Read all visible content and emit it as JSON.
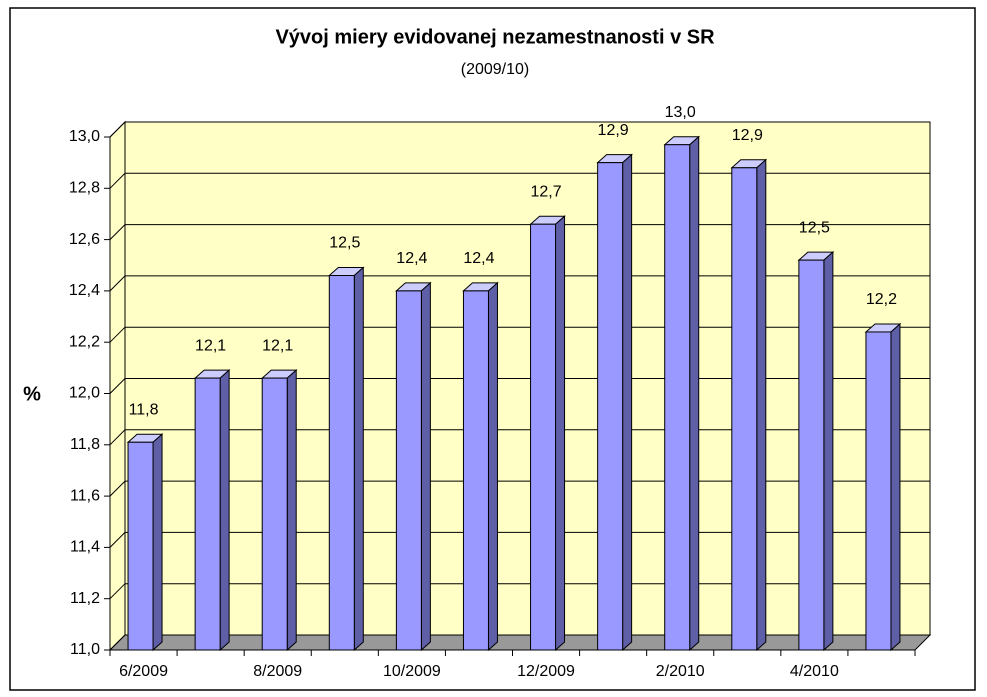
{
  "chart_data": {
    "type": "bar",
    "title": "Vývoj miery evidovanej nezamestnanosti v SR",
    "subtitle": "(2009/10)",
    "y_label": "%",
    "categories": [
      "6/2009",
      null,
      "8/2009",
      null,
      "10/2009",
      null,
      "12/2009",
      null,
      "2/2010",
      null,
      "4/2010",
      null
    ],
    "values": [
      11.81,
      12.06,
      12.06,
      12.46,
      12.4,
      12.4,
      12.66,
      12.9,
      12.97,
      12.88,
      12.52,
      12.24
    ],
    "value_labels": [
      "11,8",
      "12,1",
      "12,1",
      "12,5",
      "12,4",
      "12,4",
      "12,7",
      "12,9",
      "13,0",
      "12,9",
      "12,5",
      "12,2"
    ],
    "color": "#9999ff",
    "ylim": [
      11,
      13
    ],
    "yticks": [
      {
        "value": 11,
        "label": "11,0"
      },
      {
        "value": 11.2,
        "label": "11,2"
      },
      {
        "value": 11.4,
        "label": "11,4"
      },
      {
        "value": 11.6,
        "label": "11,6"
      },
      {
        "value": 11.8,
        "label": "11,8"
      },
      {
        "value": 12,
        "label": "12,0"
      },
      {
        "value": 12.2,
        "label": "12,2"
      },
      {
        "value": 12.4,
        "label": "12,4"
      },
      {
        "value": 12.6,
        "label": "12,6"
      },
      {
        "value": 12.8,
        "label": "12,8"
      },
      {
        "value": 13,
        "label": "13,0"
      }
    ],
    "grid": true
  }
}
